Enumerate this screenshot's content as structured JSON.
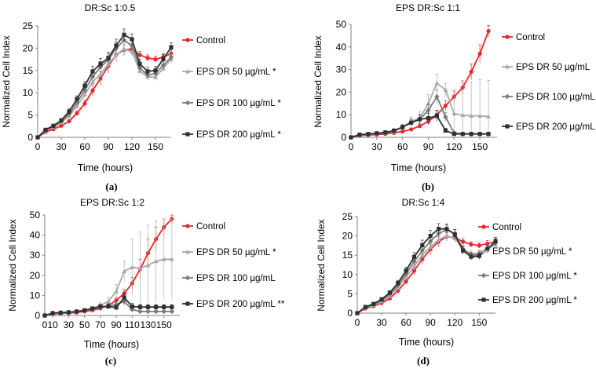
{
  "figure": {
    "panel_label_style": "serif, bold letter in parentheses",
    "colors": {
      "control": "#e8252a",
      "dr50": "#a9a9a9",
      "dr100": "#7a7a7a",
      "dr200": "#303030",
      "axis": "#7f7f7f"
    }
  },
  "chart_data": [
    {
      "type": "line",
      "panel": "(a)",
      "title": "DR:Sc 1:0.5",
      "xlabel": "Time (hours)",
      "ylabel": "Normalized Cell Index",
      "xlim": [
        0,
        170
      ],
      "ylim": [
        0,
        25
      ],
      "xticks": [
        0,
        30,
        60,
        90,
        120,
        150
      ],
      "yticks": [
        0,
        5,
        10,
        15,
        20,
        25
      ],
      "grid": false,
      "legend_position": "right",
      "series": [
        {
          "name": "Control",
          "key": "control",
          "marker": "circle",
          "x": [
            0,
            10,
            20,
            30,
            40,
            50,
            60,
            70,
            80,
            90,
            100,
            110,
            120,
            130,
            140,
            150,
            160,
            170
          ],
          "y": [
            0,
            1.2,
            1.8,
            2.6,
            3.6,
            5.4,
            7.6,
            10.5,
            13.2,
            16.0,
            18.5,
            19.6,
            19.8,
            18.5,
            17.8,
            17.5,
            18.0,
            18.8
          ],
          "err": [
            0,
            0.2,
            0.3,
            0.3,
            0.4,
            0.5,
            0.8,
            1.2,
            1.5,
            1.6,
            1.5,
            1.2,
            1.0,
            0.8,
            0.7,
            0.7,
            0.8,
            0.8
          ]
        },
        {
          "name": "EPS DR 50 µg/mL *",
          "key": "dr50",
          "marker": "triangle",
          "x": [
            0,
            10,
            20,
            30,
            40,
            50,
            60,
            70,
            80,
            90,
            100,
            110,
            120,
            130,
            140,
            150,
            160,
            170
          ],
          "y": [
            0,
            1.5,
            2.2,
            3.3,
            4.8,
            7.0,
            9.6,
            12.4,
            14.2,
            16.4,
            18.5,
            19.8,
            19.2,
            14.9,
            13.6,
            13.5,
            15.5,
            17.6
          ],
          "err": [
            0,
            0.2,
            0.3,
            0.4,
            0.5,
            0.6,
            0.8,
            1.0,
            1.2,
            1.3,
            1.2,
            1.0,
            1.0,
            0.9,
            0.8,
            0.8,
            0.9,
            1.0
          ]
        },
        {
          "name": "EPS DR 100 µg/mL *",
          "key": "dr100",
          "marker": "diamond",
          "x": [
            0,
            10,
            20,
            30,
            40,
            50,
            60,
            70,
            80,
            90,
            100,
            110,
            120,
            130,
            140,
            150,
            160,
            170
          ],
          "y": [
            0,
            1.6,
            2.4,
            3.6,
            5.2,
            7.8,
            10.6,
            13.6,
            15.8,
            17.4,
            20.0,
            21.8,
            20.6,
            15.6,
            14.0,
            14.3,
            16.2,
            18.0
          ],
          "err": [
            0,
            0.2,
            0.3,
            0.4,
            0.5,
            0.7,
            0.9,
            1.0,
            1.2,
            1.3,
            1.3,
            1.2,
            1.1,
            1.0,
            0.8,
            0.8,
            0.9,
            1.0
          ]
        },
        {
          "name": "EPS DR 200 µg/mL *",
          "key": "dr200",
          "marker": "square",
          "x": [
            0,
            10,
            20,
            30,
            40,
            50,
            60,
            70,
            80,
            90,
            100,
            110,
            120,
            130,
            140,
            150,
            160,
            170
          ],
          "y": [
            0,
            1.7,
            2.6,
            3.8,
            5.8,
            8.6,
            11.6,
            14.8,
            16.5,
            17.8,
            20.6,
            23.0,
            22.0,
            16.5,
            14.8,
            15.0,
            17.6,
            20.2
          ],
          "err": [
            0,
            0.2,
            0.3,
            0.4,
            0.6,
            0.7,
            0.9,
            1.1,
            1.2,
            1.3,
            1.4,
            1.3,
            1.2,
            1.0,
            0.9,
            0.9,
            1.0,
            1.0
          ]
        }
      ]
    },
    {
      "type": "line",
      "panel": "(b)",
      "title": "EPS DR:Sc 1:1",
      "xlabel": "Time (hours)",
      "ylabel": "Normalized Cell Index",
      "xlim": [
        0,
        170
      ],
      "ylim": [
        0,
        50
      ],
      "xticks": [
        0,
        30,
        60,
        90,
        120,
        150
      ],
      "yticks": [
        0,
        10,
        20,
        30,
        40,
        50
      ],
      "grid": false,
      "legend_position": "right",
      "series": [
        {
          "name": "Control",
          "key": "control",
          "marker": "circle",
          "x": [
            0,
            10,
            20,
            30,
            40,
            50,
            60,
            70,
            80,
            90,
            100,
            110,
            120,
            130,
            140,
            150,
            160
          ],
          "y": [
            0,
            0.8,
            1.0,
            1.2,
            1.5,
            2.0,
            2.6,
            3.5,
            5.0,
            7.0,
            10.0,
            14.0,
            18.0,
            22.0,
            29.0,
            37.0,
            47.0
          ],
          "err": [
            0,
            0.2,
            0.2,
            0.3,
            0.3,
            0.4,
            0.5,
            0.6,
            1.0,
            1.4,
            1.8,
            2.2,
            2.5,
            3.0,
            3.5,
            4.0,
            2.5
          ]
        },
        {
          "name": "EPS DR 50 µg/mL",
          "key": "dr50",
          "marker": "triangle",
          "x": [
            0,
            10,
            20,
            30,
            40,
            50,
            60,
            70,
            80,
            90,
            100,
            110,
            120,
            130,
            140,
            150,
            160
          ],
          "y": [
            0,
            1.0,
            1.2,
            1.5,
            2.0,
            2.6,
            4.5,
            7.0,
            8.5,
            15.0,
            24.0,
            21.0,
            10.5,
            9.8,
            9.5,
            9.5,
            9.2
          ],
          "err": [
            0,
            0.3,
            0.3,
            0.4,
            0.5,
            0.8,
            1.2,
            2.0,
            3.0,
            4.0,
            4.0,
            3.0,
            9.0,
            14.0,
            15.0,
            16.0,
            16.0
          ]
        },
        {
          "name": "EPS DR 100 µg/mL",
          "key": "dr100",
          "marker": "diamond",
          "x": [
            0,
            10,
            20,
            30,
            40,
            50,
            60,
            70,
            80,
            90,
            100,
            110,
            120,
            130,
            140,
            150,
            160
          ],
          "y": [
            0,
            1.0,
            1.2,
            1.5,
            2.0,
            2.8,
            4.5,
            6.5,
            8.0,
            12.0,
            18.0,
            9.0,
            2.0,
            1.5,
            1.5,
            1.5,
            1.5
          ],
          "err": [
            0,
            0.3,
            0.3,
            0.4,
            0.5,
            0.7,
            1.0,
            1.5,
            2.0,
            2.8,
            3.0,
            2.0,
            0.6,
            0.4,
            0.4,
            0.4,
            0.4
          ]
        },
        {
          "name": "EPS DR 200 µg/mL",
          "key": "dr200",
          "marker": "square",
          "x": [
            0,
            10,
            20,
            30,
            40,
            50,
            60,
            70,
            80,
            90,
            100,
            110,
            120,
            130,
            140,
            150,
            160
          ],
          "y": [
            0,
            1.2,
            1.5,
            1.8,
            2.2,
            3.0,
            4.5,
            6.5,
            8.0,
            8.5,
            9.5,
            3.0,
            1.5,
            1.5,
            1.5,
            1.5,
            1.5
          ],
          "err": [
            0,
            0.3,
            0.3,
            0.4,
            0.5,
            0.7,
            1.0,
            1.5,
            2.0,
            2.2,
            2.5,
            1.0,
            0.5,
            0.4,
            0.4,
            0.4,
            0.4
          ]
        }
      ]
    },
    {
      "type": "line",
      "panel": "(c)",
      "title": "EPS DR:Sc 1:2",
      "xlabel": "Time (hours)",
      "ylabel": "Normalized Cell Index",
      "xlim": [
        0,
        170
      ],
      "ylim": [
        0,
        50
      ],
      "xticks": [
        0,
        10,
        30,
        50,
        70,
        90,
        110,
        130,
        150
      ],
      "yticks": [
        0,
        10,
        20,
        30,
        40,
        50
      ],
      "grid": false,
      "legend_position": "right",
      "series": [
        {
          "name": "Control",
          "key": "control",
          "marker": "circle",
          "x": [
            0,
            10,
            20,
            30,
            40,
            50,
            60,
            70,
            80,
            90,
            100,
            110,
            120,
            130,
            140,
            150,
            160
          ],
          "y": [
            0,
            0.8,
            1.0,
            1.2,
            1.5,
            2.0,
            2.6,
            3.5,
            5.0,
            7.5,
            11.0,
            16.0,
            23.0,
            31.0,
            38.0,
            44.0,
            48.0
          ],
          "err": [
            0,
            0.2,
            0.2,
            0.3,
            0.3,
            0.4,
            0.5,
            0.6,
            1.0,
            1.5,
            2.0,
            3.0,
            5.0,
            7.0,
            6.0,
            4.0,
            2.5
          ]
        },
        {
          "name": "EPS DR 50 µg/mL *",
          "key": "dr50",
          "marker": "triangle",
          "x": [
            0,
            10,
            20,
            30,
            40,
            50,
            60,
            70,
            80,
            90,
            100,
            110,
            120,
            130,
            140,
            150,
            160
          ],
          "y": [
            0,
            1.0,
            1.2,
            1.4,
            1.8,
            2.4,
            3.5,
            5.0,
            7.0,
            12.0,
            22.0,
            24.0,
            23.5,
            25.0,
            27.0,
            28.0,
            28.0
          ],
          "err": [
            0,
            0.3,
            0.3,
            0.4,
            0.5,
            0.6,
            0.9,
            1.3,
            2.0,
            3.5,
            5.0,
            14.0,
            18.0,
            20.0,
            20.0,
            20.0,
            20.0
          ]
        },
        {
          "name": "EPS DR 100 µg/mL",
          "key": "dr100",
          "marker": "diamond",
          "x": [
            0,
            10,
            20,
            30,
            40,
            50,
            60,
            70,
            80,
            90,
            100,
            110,
            120,
            130,
            140,
            150,
            160
          ],
          "y": [
            0,
            1.0,
            1.2,
            1.4,
            1.8,
            2.4,
            3.2,
            4.0,
            4.5,
            5.5,
            7.0,
            3.0,
            2.0,
            2.0,
            2.0,
            2.0,
            2.0
          ],
          "err": [
            0,
            0.3,
            0.3,
            0.4,
            0.5,
            0.6,
            0.8,
            1.0,
            1.2,
            1.5,
            2.0,
            1.0,
            0.6,
            0.6,
            0.6,
            0.6,
            0.6
          ]
        },
        {
          "name": "EPS DR 200 µg/mL **",
          "key": "dr200",
          "marker": "square",
          "x": [
            0,
            10,
            20,
            30,
            40,
            50,
            60,
            70,
            80,
            90,
            100,
            110,
            120,
            130,
            140,
            150,
            160
          ],
          "y": [
            0,
            1.2,
            1.4,
            1.6,
            2.0,
            2.6,
            3.5,
            4.5,
            4.5,
            4.0,
            9.0,
            4.5,
            4.2,
            4.2,
            4.2,
            4.2,
            4.2
          ],
          "err": [
            0,
            0.3,
            0.3,
            0.4,
            0.5,
            0.6,
            0.8,
            1.0,
            1.2,
            1.2,
            2.0,
            1.5,
            1.2,
            1.2,
            1.2,
            1.2,
            1.2
          ]
        }
      ]
    },
    {
      "type": "line",
      "panel": "(d)",
      "title": "DR:Sc 1:4",
      "xlabel": "Time (hours)",
      "ylabel": "Normalized Cell Index",
      "xlim": [
        0,
        170
      ],
      "ylim": [
        0,
        25
      ],
      "xticks": [
        0,
        30,
        60,
        90,
        120,
        150
      ],
      "yticks": [
        0,
        5,
        10,
        15,
        20,
        25
      ],
      "grid": false,
      "legend_position": "right",
      "series": [
        {
          "name": "Control",
          "key": "control",
          "marker": "circle",
          "x": [
            0,
            10,
            20,
            30,
            40,
            50,
            60,
            70,
            80,
            90,
            100,
            110,
            120,
            130,
            140,
            150,
            160,
            170
          ],
          "y": [
            0,
            1.2,
            1.8,
            2.6,
            3.8,
            5.8,
            8.2,
            11.0,
            14.0,
            16.5,
            18.5,
            19.8,
            19.6,
            18.5,
            17.8,
            17.5,
            18.0,
            18.5
          ],
          "err": [
            0,
            0.2,
            0.3,
            0.3,
            0.4,
            0.6,
            0.8,
            1.1,
            1.3,
            1.4,
            1.3,
            1.1,
            1.0,
            0.8,
            0.7,
            0.7,
            0.8,
            0.8
          ]
        },
        {
          "name": "EPS DR 50 µg/mL *",
          "key": "dr50",
          "marker": "triangle",
          "x": [
            0,
            10,
            20,
            30,
            40,
            50,
            60,
            70,
            80,
            90,
            100,
            110,
            120,
            130,
            140,
            150,
            160,
            170
          ],
          "y": [
            0,
            1.4,
            2.0,
            3.0,
            4.4,
            6.6,
            9.4,
            12.2,
            15.0,
            17.2,
            19.0,
            20.0,
            19.4,
            16.6,
            15.4,
            15.5,
            16.5,
            17.8
          ],
          "err": [
            0,
            0.2,
            0.3,
            0.4,
            0.5,
            0.7,
            0.9,
            1.1,
            1.2,
            1.3,
            1.3,
            1.2,
            1.1,
            1.0,
            0.8,
            0.8,
            0.9,
            1.0
          ]
        },
        {
          "name": "EPS DR 100 µg/mL *",
          "key": "dr100",
          "marker": "diamond",
          "x": [
            0,
            10,
            20,
            30,
            40,
            50,
            60,
            70,
            80,
            90,
            100,
            110,
            120,
            130,
            140,
            150,
            160,
            170
          ],
          "y": [
            0,
            1.5,
            2.2,
            3.3,
            4.9,
            7.2,
            10.2,
            13.4,
            16.2,
            18.6,
            20.6,
            21.6,
            20.6,
            16.6,
            15.0,
            15.2,
            16.8,
            18.2
          ],
          "err": [
            0,
            0.2,
            0.3,
            0.4,
            0.5,
            0.7,
            0.9,
            1.1,
            1.2,
            1.3,
            1.3,
            1.2,
            1.1,
            1.0,
            0.8,
            0.8,
            0.9,
            1.0
          ]
        },
        {
          "name": "EPS DR 200 µg/mL *",
          "key": "dr200",
          "marker": "square",
          "x": [
            0,
            10,
            20,
            30,
            40,
            50,
            60,
            70,
            80,
            90,
            100,
            110,
            120,
            130,
            140,
            150,
            160,
            170
          ],
          "y": [
            0,
            1.6,
            2.4,
            3.6,
            5.3,
            7.8,
            11.0,
            14.6,
            17.6,
            20.0,
            21.8,
            21.8,
            20.4,
            16.2,
            14.6,
            14.8,
            16.6,
            18.6
          ],
          "err": [
            0,
            0.2,
            0.3,
            0.4,
            0.5,
            0.7,
            0.9,
            1.1,
            1.3,
            1.4,
            1.4,
            1.3,
            1.2,
            1.0,
            0.9,
            0.9,
            1.0,
            1.0
          ]
        }
      ]
    }
  ]
}
